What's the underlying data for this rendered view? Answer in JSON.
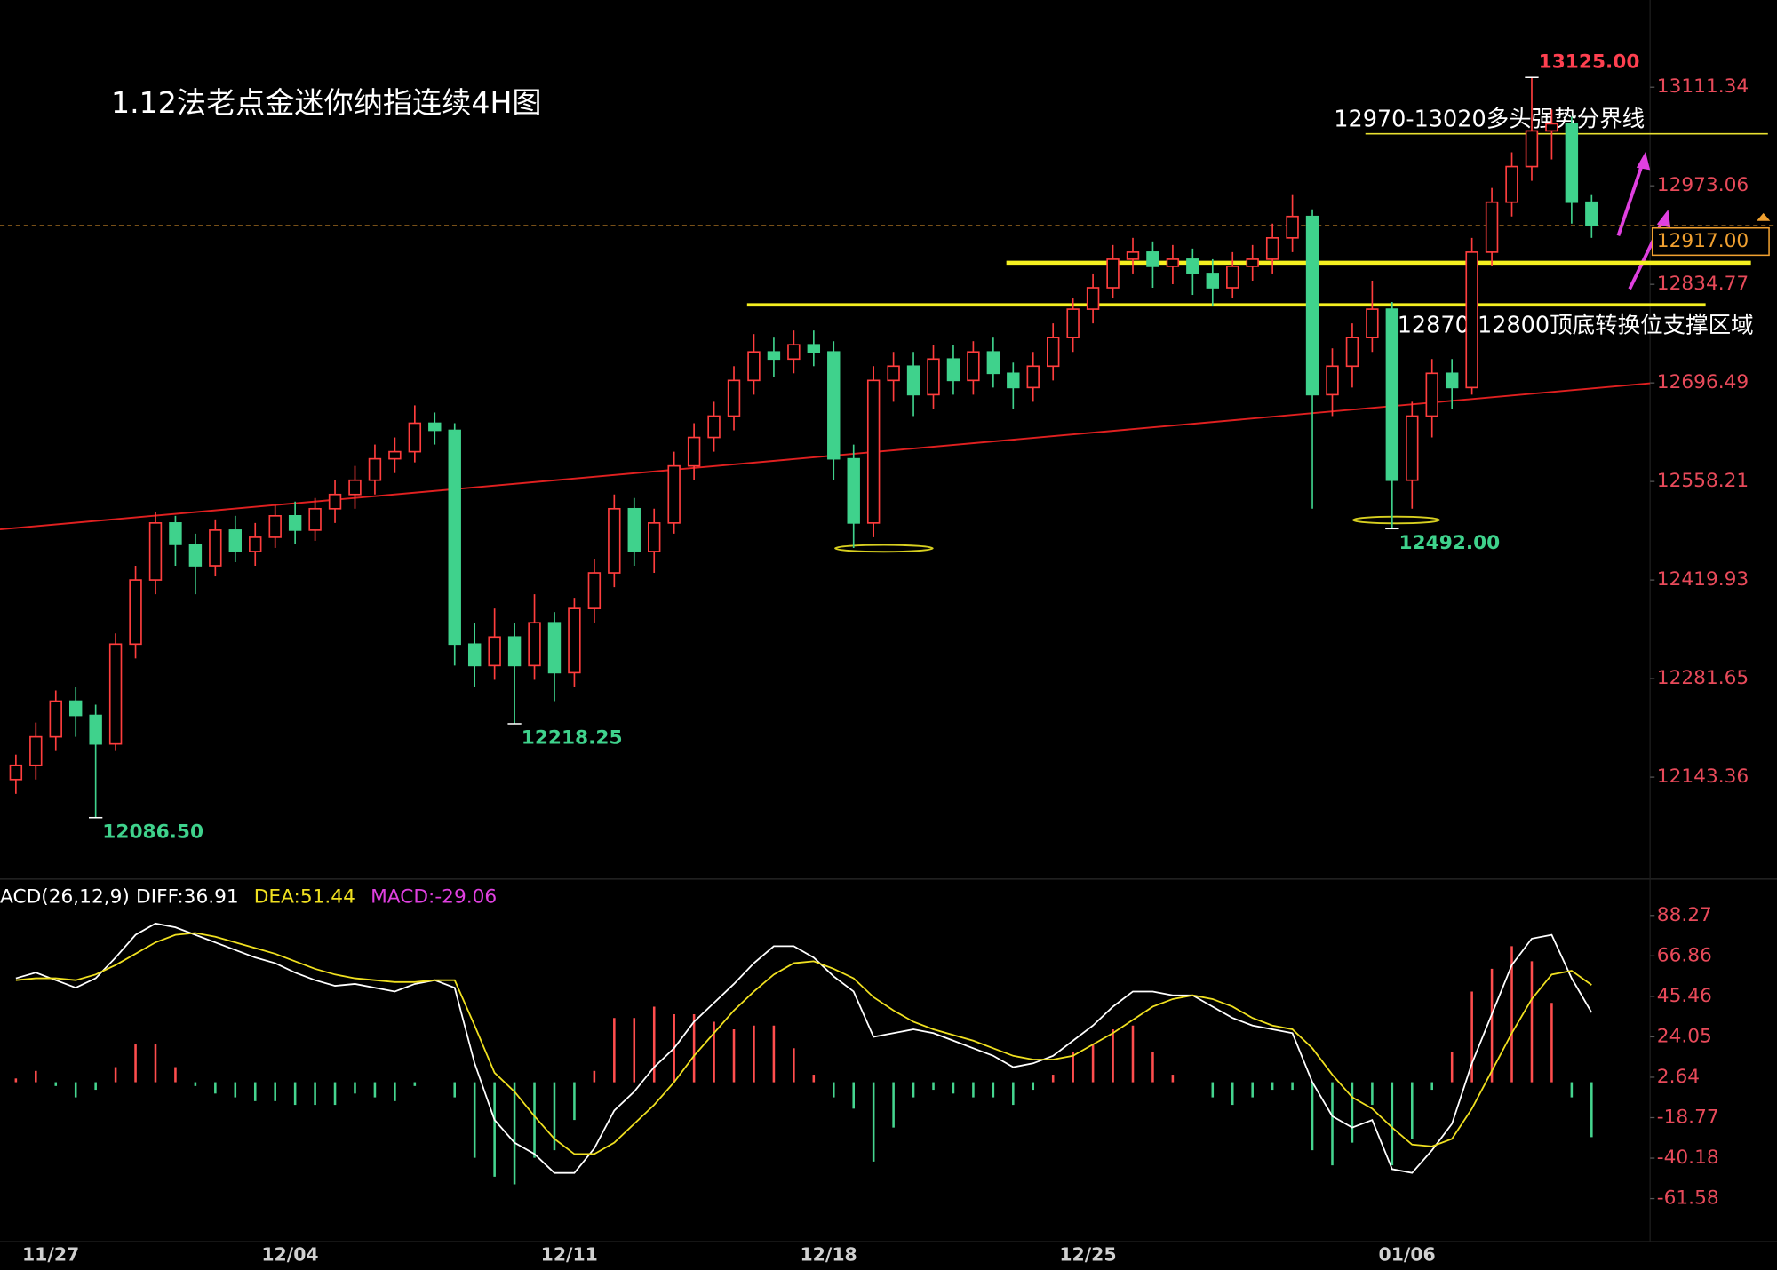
{
  "chart_data": [
    {
      "type": "candlestick",
      "title": "1.12法老点金迷你纳指连续4H图",
      "categories": [
        null,
        "11/27",
        null,
        null,
        null,
        null,
        null,
        null,
        null,
        null,
        null,
        null,
        null,
        "12/04",
        null,
        null,
        null,
        null,
        null,
        null,
        null,
        null,
        null,
        null,
        null,
        null,
        null,
        "12/11",
        null,
        null,
        null,
        null,
        null,
        null,
        null,
        null,
        null,
        null,
        null,
        null,
        "12/18",
        null,
        null,
        null,
        null,
        null,
        null,
        null,
        null,
        null,
        null,
        null,
        null,
        "12/25",
        null,
        null,
        null,
        null,
        null,
        null,
        null,
        null,
        null,
        null,
        null,
        null,
        null,
        null,
        null,
        "01/06",
        null,
        null,
        null,
        null,
        null,
        null,
        null,
        null,
        null,
        null
      ],
      "open": [
        12140,
        12160,
        12200,
        12250,
        12230,
        12190,
        12330,
        12420,
        12500,
        12470,
        12440,
        12490,
        12460,
        12480,
        12510,
        12490,
        12520,
        12540,
        12560,
        12590,
        12600,
        12640,
        12630,
        12330,
        12300,
        12340,
        12300,
        12360,
        12290,
        12380,
        12430,
        12520,
        12460,
        12500,
        12580,
        12620,
        12650,
        12700,
        12740,
        12730,
        12750,
        12740,
        12590,
        12500,
        12700,
        12720,
        12680,
        12730,
        12700,
        12740,
        12710,
        12690,
        12720,
        12760,
        12800,
        12830,
        12870,
        12880,
        12860,
        12870,
        12850,
        12830,
        12860,
        12870,
        12900,
        12930,
        12680,
        12720,
        12760,
        12800,
        12560,
        12650,
        12710,
        12690,
        12880,
        12950,
        13000,
        13050,
        13060,
        12950
      ],
      "high": [
        12175,
        12220,
        12265,
        12270,
        12245,
        12345,
        12440,
        12515,
        12510,
        12485,
        12505,
        12510,
        12500,
        12525,
        12530,
        12535,
        12560,
        12580,
        12610,
        12620,
        12665,
        12655,
        12640,
        12360,
        12380,
        12360,
        12400,
        12375,
        12395,
        12450,
        12540,
        12535,
        12520,
        12600,
        12640,
        12670,
        12720,
        12765,
        12760,
        12770,
        12770,
        12755,
        12610,
        12720,
        12740,
        12740,
        12750,
        12750,
        12755,
        12760,
        12725,
        12740,
        12780,
        12815,
        12850,
        12890,
        12900,
        12895,
        12890,
        12885,
        12870,
        12880,
        12890,
        12920,
        12960,
        12940,
        12745,
        12780,
        12840,
        12810,
        12670,
        12730,
        12730,
        12900,
        12970,
        13020,
        13125,
        13080,
        13070,
        12960
      ],
      "low": [
        12120,
        12140,
        12180,
        12200,
        12086.5,
        12180,
        12310,
        12400,
        12440,
        12400,
        12425,
        12445,
        12440,
        12465,
        12470,
        12475,
        12500,
        12520,
        12540,
        12570,
        12585,
        12610,
        12300,
        12270,
        12280,
        12218.25,
        12280,
        12250,
        12270,
        12360,
        12410,
        12440,
        12430,
        12485,
        12560,
        12600,
        12630,
        12680,
        12705,
        12710,
        12720,
        12560,
        12465,
        12480,
        12670,
        12650,
        12660,
        12680,
        12680,
        12690,
        12660,
        12670,
        12700,
        12740,
        12780,
        12815,
        12850,
        12830,
        12835,
        12820,
        12805,
        12815,
        12840,
        12850,
        12880,
        12520,
        12650,
        12690,
        12740,
        12492,
        12520,
        12620,
        12660,
        12680,
        12860,
        12930,
        12980,
        13010,
        12920,
        12900
      ],
      "close": [
        12160,
        12200,
        12250,
        12230,
        12190,
        12330,
        12420,
        12500,
        12470,
        12440,
        12490,
        12460,
        12480,
        12510,
        12490,
        12520,
        12540,
        12560,
        12590,
        12600,
        12640,
        12630,
        12330,
        12300,
        12340,
        12300,
        12360,
        12290,
        12380,
        12430,
        12520,
        12460,
        12500,
        12580,
        12620,
        12650,
        12700,
        12740,
        12730,
        12750,
        12740,
        12590,
        12500,
        12700,
        12720,
        12680,
        12730,
        12700,
        12740,
        12710,
        12690,
        12720,
        12760,
        12800,
        12830,
        12870,
        12880,
        12860,
        12870,
        12850,
        12830,
        12860,
        12870,
        12900,
        12930,
        12680,
        12720,
        12760,
        12800,
        12560,
        12650,
        12710,
        12690,
        12880,
        12950,
        13000,
        13050,
        13060,
        12950,
        12917
      ],
      "up_color": "#ff3d3d",
      "down_color": "#3fd28c",
      "axis_color": "#e84a5a",
      "ylim": [
        12001.9,
        13233.7
      ],
      "yticks": [
        13111.34,
        12973.06,
        12834.77,
        12696.49,
        12558.21,
        12419.93,
        12281.65,
        {
          "value": 12143.36,
          "label": "12143.36"
        }
      ],
      "last_price": {
        "value": 12917,
        "label": "12917.00",
        "color": "#f0a030"
      },
      "extremes": [
        {
          "index": 76,
          "value": 13125,
          "label": "13125.00",
          "color": "#ff4050"
        },
        {
          "index": 4,
          "value": 12086.5,
          "label": "12086.50",
          "color": "#3fd28c"
        },
        {
          "index": 25,
          "value": 12218.25,
          "label": "12218.25",
          "color": "#3fd28c"
        },
        {
          "index": 69,
          "value": 12492,
          "label": "12492.00",
          "color": "#3fd28c"
        }
      ],
      "levels": [
        {
          "value": 13046,
          "start": 68,
          "color": "#e8e030",
          "label": "12970-13020多头强势分界线"
        },
        {
          "value": 12865,
          "start": 50,
          "color": "#f5f020"
        },
        {
          "value": 12806,
          "start": 37,
          "color": "#f5f020",
          "label": "12870-12800顶底转换位支撑区域"
        }
      ],
      "trendline": {
        "values": [
          12491,
          12696
        ],
        "color": "#e02020"
      }
    },
    {
      "type": "macd",
      "header": "ACD(26,12,9)",
      "ylim": [
        -83.8,
        93.1
      ],
      "yticks": [
        88.27,
        66.86,
        45.46,
        24.05,
        2.64,
        -18.77,
        -40.18,
        -61.58
      ],
      "series": [
        {
          "name": "DIFF:36.91",
          "color": "#ffffff",
          "values": [
            55,
            58,
            54,
            50,
            55,
            66,
            78,
            84,
            82,
            78,
            74,
            70,
            66,
            63,
            58,
            54,
            51,
            52,
            50,
            48,
            52,
            54,
            50,
            10,
            -20,
            -32,
            -38,
            -48,
            -48,
            -35,
            -15,
            -5,
            8,
            18,
            32,
            42,
            52,
            63,
            72,
            72,
            66,
            56,
            48,
            24,
            26,
            28,
            26,
            22,
            18,
            14,
            8,
            10,
            14,
            22,
            30,
            40,
            48,
            48,
            46,
            46,
            40,
            34,
            30,
            28,
            26,
            0,
            -18,
            -24,
            -20,
            -46,
            -48,
            -36,
            -22,
            10,
            36,
            62,
            76,
            78,
            55,
            36.91
          ]
        },
        {
          "name": "DEA:51.44",
          "color": "#f0e020",
          "values": [
            54,
            55,
            55,
            54,
            57,
            62,
            68,
            74,
            78,
            79,
            77,
            74,
            71,
            68,
            64,
            60,
            57,
            55,
            54,
            53,
            53,
            54,
            54,
            30,
            5,
            -5,
            -18,
            -30,
            -38,
            -38,
            -32,
            -22,
            -12,
            0,
            14,
            26,
            38,
            48,
            57,
            63,
            64,
            60,
            55,
            45,
            38,
            32,
            28,
            25,
            22,
            18,
            14,
            12,
            12,
            14,
            20,
            26,
            33,
            40,
            44,
            46,
            44,
            40,
            34,
            30,
            28,
            18,
            4,
            -8,
            -14,
            -24,
            -33,
            -34,
            -30,
            -14,
            6,
            26,
            44,
            57,
            59,
            51.44
          ]
        },
        {
          "name": "MACD:-29.06",
          "color": "#e040e0",
          "up_color": "#ff4d4d",
          "down_color": "#45d58f",
          "values": [
            2,
            6,
            -2,
            -8,
            -4,
            8,
            20,
            20,
            8,
            -2,
            -6,
            -8,
            -10,
            -10,
            -12,
            -12,
            -12,
            -6,
            -8,
            -10,
            -2,
            0,
            -8,
            -40,
            -50,
            -54,
            -40,
            -36,
            -20,
            6,
            34,
            34,
            40,
            36,
            36,
            32,
            28,
            30,
            30,
            18,
            4,
            -8,
            -14,
            -42,
            -24,
            -8,
            -4,
            -6,
            -8,
            -8,
            -12,
            -4,
            4,
            16,
            20,
            28,
            30,
            16,
            4,
            0,
            -8,
            -12,
            -8,
            -4,
            -4,
            -36,
            -44,
            -32,
            -12,
            -44,
            -30,
            -4,
            16,
            48,
            60,
            72,
            64,
            42,
            -8,
            -29.06
          ]
        }
      ]
    }
  ]
}
